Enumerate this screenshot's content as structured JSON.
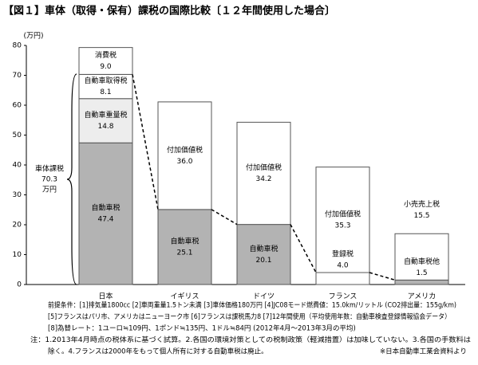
{
  "chart_data": {
    "type": "stacked-bar",
    "title": "【図１】車体（取得・保有）課税の国際比較〔１２年間使用した場合〕",
    "y_unit": "(万円)",
    "categories": [
      "日本",
      "イギリス",
      "ドイツ",
      "フランス",
      "アメリカ"
    ],
    "stacks": [
      [
        {
          "name": "自動車税",
          "value": 47.4,
          "value_label": "47.4",
          "color": "#b3b3b3"
        },
        {
          "name": "自動車重量税",
          "value": 14.8,
          "value_label": "14.8",
          "color": "#ededed"
        },
        {
          "name": "自動車取得税",
          "value": 8.1,
          "value_label": "8.1",
          "color": "#ffffff"
        },
        {
          "name": "消費税",
          "value": 9.0,
          "value_label": "9.0",
          "color": "#ffffff"
        }
      ],
      [
        {
          "name": "自動車税",
          "value": 25.1,
          "value_label": "25.1",
          "color": "#b3b3b3"
        },
        {
          "name": "付加価値税",
          "value": 36.0,
          "value_label": "36.0",
          "color": "#ffffff"
        }
      ],
      [
        {
          "name": "自動車税",
          "value": 20.1,
          "value_label": "20.1",
          "color": "#b3b3b3"
        },
        {
          "name": "付加価値税",
          "value": 34.2,
          "value_label": "34.2",
          "color": "#ffffff"
        }
      ],
      [
        {
          "name": "登録税",
          "value": 4.0,
          "value_label": "4.0",
          "color": "#ffffff"
        },
        {
          "name": "付加価値税",
          "value": 35.3,
          "value_label": "35.3",
          "color": "#ffffff"
        }
      ],
      [
        {
          "name": "自動車税他",
          "value": 1.5,
          "value_label": "1.5",
          "color": "#b3b3b3"
        },
        {
          "name": "小売売上税",
          "value": 15.5,
          "value_label": "15.5",
          "color": "#ffffff"
        }
      ]
    ],
    "annotation": [
      "車体課税",
      "70.3",
      "万円"
    ],
    "ylim": [
      0,
      80
    ],
    "yticks": [
      0,
      10,
      20,
      30,
      40,
      50,
      60,
      70,
      80
    ],
    "notes": [
      "前提条件：[1]排気量1800cc [2]車両重量1.5トン未満 [3]車体価格180万円 [4]JC08モード燃費値：15.0km/リットル (CO2排出量：155g/km)",
      "[5]フランスはパリ市、アメリカはニューヨーク市 [6]フランスは課税馬力8 [7]12年間使用（平均使用年数：自動車検査登録情報協会データ）",
      "[8]為替レート：1ユーロ≒109円、1ポンド≒135円、1ドル≒84円 (2012年4月～2013年3月の平均)",
      "注：1.2013年4月時点の税体系に基づく試算。2.各国の環境対策としての税制政策（軽減措置）は加味していない。3.各国の手数料は",
      "除く。4.フランスは2000年をもって個人所有に対する自動車税は廃止。"
    ],
    "source": "※日本自動車工業会資料より"
  }
}
